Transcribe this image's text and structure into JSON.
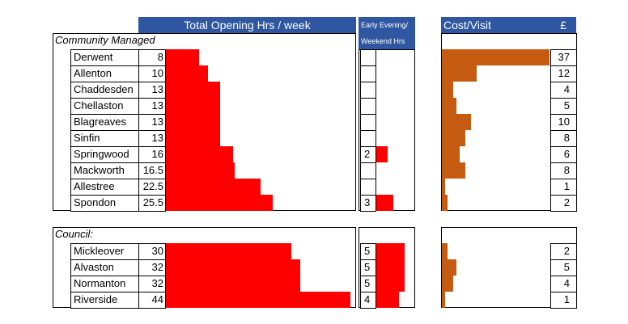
{
  "headers": {
    "hours": "Total Opening Hrs / week",
    "evening": "Early Evening/",
    "weekend": "Weekend Hrs",
    "cost": "Cost/Visit",
    "currency": "£"
  },
  "colors": {
    "hours_bar": "#ff0000",
    "evening_bar": "#ff0000",
    "cost_bar": "#c55a11",
    "header_bg": "#2e56a1"
  },
  "chart_data": {
    "type": "bar",
    "groups": [
      {
        "label": "Community Managed",
        "rows": [
          {
            "name": "Derwent",
            "hours": "8",
            "evening": "",
            "cost": "37"
          },
          {
            "name": "Allenton",
            "hours": "10",
            "evening": "",
            "cost": "12"
          },
          {
            "name": "Chaddesden",
            "hours": "13",
            "evening": "",
            "cost": "4"
          },
          {
            "name": "Chellaston",
            "hours": "13",
            "evening": "",
            "cost": "5"
          },
          {
            "name": "Blagreaves",
            "hours": "13",
            "evening": "",
            "cost": "10"
          },
          {
            "name": "Sinfin",
            "hours": "13",
            "evening": "",
            "cost": "8"
          },
          {
            "name": "Springwood",
            "hours": "16",
            "evening": "2",
            "cost": "6"
          },
          {
            "name": "Mackworth",
            "hours": "16.5",
            "evening": "",
            "cost": "8"
          },
          {
            "name": "Allestree",
            "hours": "22.5",
            "evening": "",
            "cost": "1"
          },
          {
            "name": "Spondon",
            "hours": "25.5",
            "evening": "3",
            "cost": "2"
          }
        ]
      },
      {
        "label": "Council:",
        "rows": [
          {
            "name": "Mickleover",
            "hours": "30",
            "evening": "5",
            "cost": "2"
          },
          {
            "name": "Alvaston",
            "hours": "32",
            "evening": "5",
            "cost": "5"
          },
          {
            "name": "Normanton",
            "hours": "32",
            "evening": "5",
            "cost": "4"
          },
          {
            "name": "Riverside",
            "hours": "44",
            "evening": "4",
            "cost": "1"
          }
        ]
      }
    ]
  }
}
